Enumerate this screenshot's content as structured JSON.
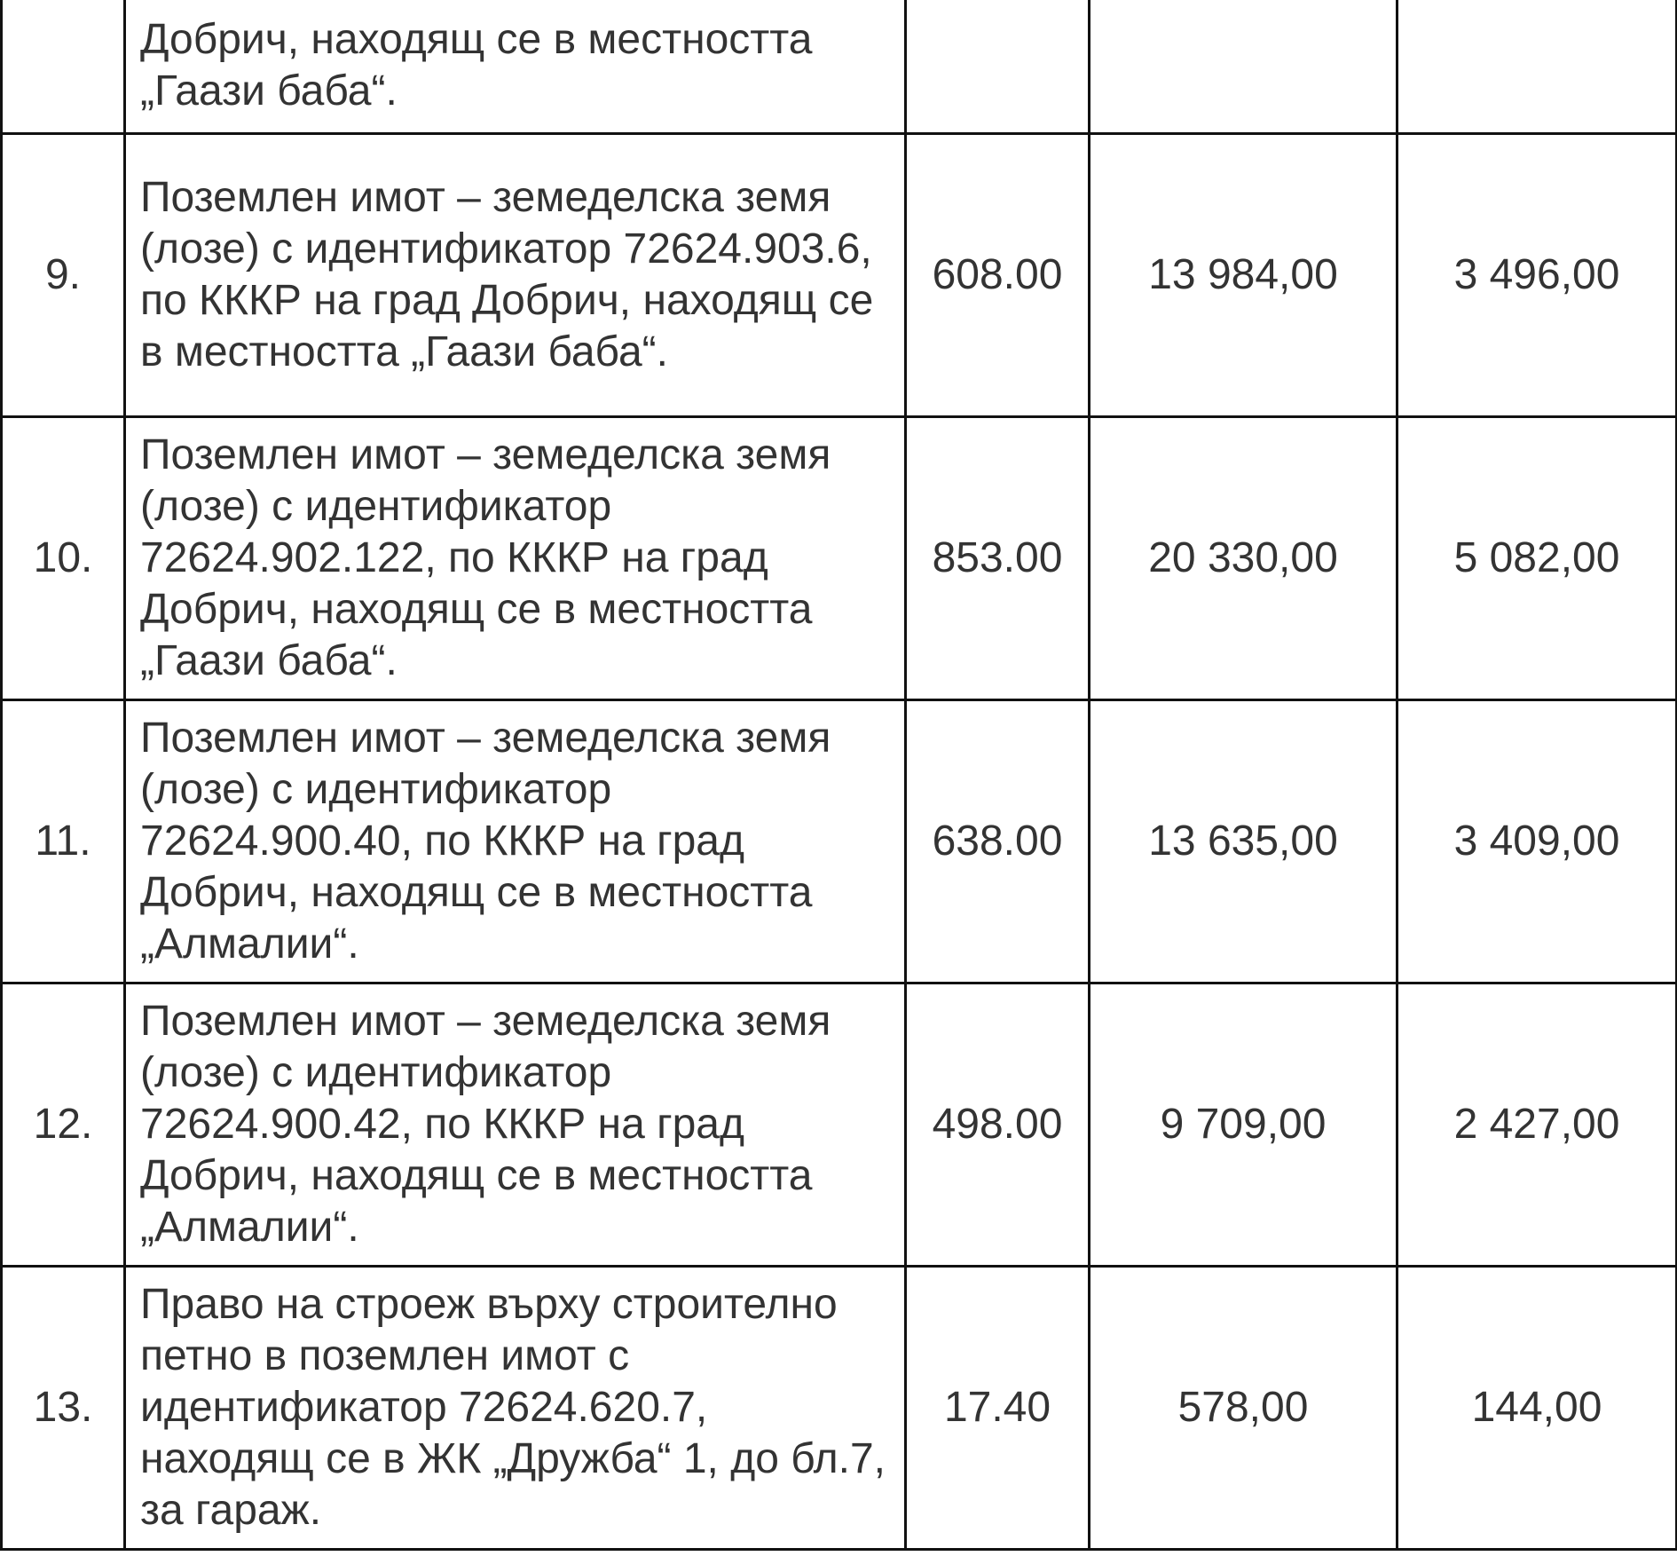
{
  "rows": [
    {
      "no": "",
      "description": "Добрич, находящ се в местността „Гаази баба“.",
      "area": "",
      "value1": "",
      "value2": ""
    },
    {
      "no": "9.",
      "description": "Поземлен имот – земеделска земя (лозе) с идентификатор 72624.903.6, по КККР на град Добрич, находящ се в местността „Гаази баба“.",
      "area": "608.00",
      "value1": "13 984,00",
      "value2": "3 496,00"
    },
    {
      "no": "10.",
      "description": "Поземлен имот – земеделска земя (лозе) с идентификатор 72624.902.122, по КККР на град Добрич, находящ се в местността „Гаази баба“.",
      "area": "853.00",
      "value1": "20 330,00",
      "value2": "5 082,00"
    },
    {
      "no": "11.",
      "description": "Поземлен имот – земеделска земя (лозе) с идентификатор 72624.900.40, по КККР на град Добрич, находящ се в местността „Алмалии“.",
      "area": "638.00",
      "value1": "13 635,00",
      "value2": "3 409,00"
    },
    {
      "no": "12.",
      "description": "Поземлен имот – земеделска земя (лозе) с идентификатор 72624.900.42, по КККР на град Добрич, находящ се в местността „Алмалии“.",
      "area": "498.00",
      "value1": "9 709,00",
      "value2": "2 427,00"
    },
    {
      "no": "13.",
      "description": "Право на строеж върху строително петно в поземлен имот с идентификатор 72624.620.7, находящ се в ЖК „Дружба“ 1, до бл.7, за гараж.",
      "area": "17.40",
      "value1": "578,00",
      "value2": "144,00"
    }
  ]
}
